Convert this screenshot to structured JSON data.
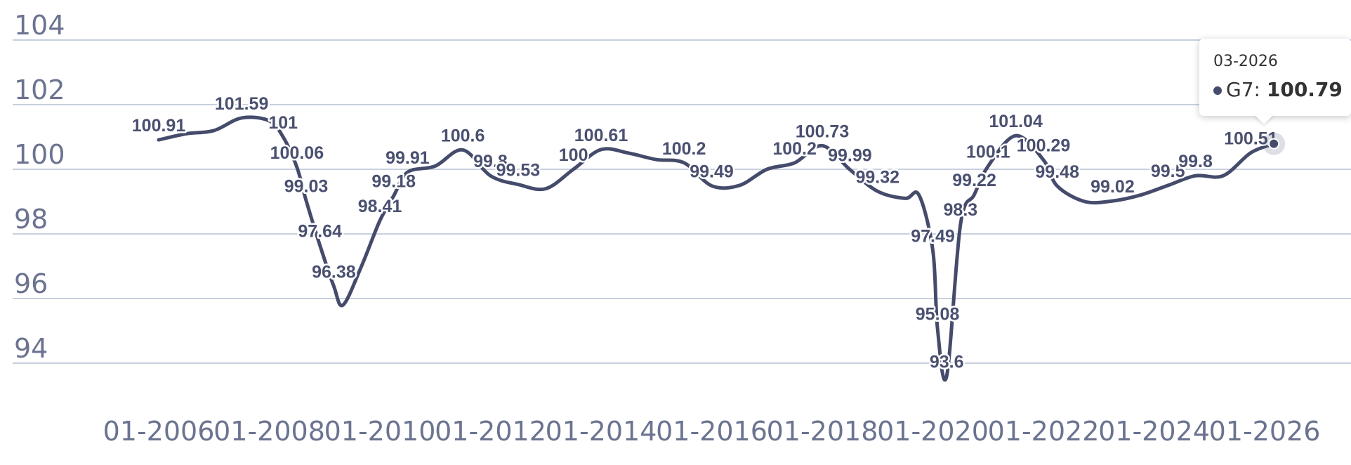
{
  "chart_data": {
    "type": "line",
    "title": "",
    "xlabel": "",
    "ylabel": "",
    "ylim": [
      93.5,
      104
    ],
    "xlim": [
      "2005-01",
      "2026-12"
    ],
    "grid": true,
    "line_color": "#454b6b",
    "grid_color": "#c8d0de",
    "y_ticks": [
      "94",
      "96",
      "98",
      "100",
      "102",
      "104"
    ],
    "x_ticks": [
      "01-2006",
      "01-2008",
      "01-2010",
      "01-2012",
      "01-2014",
      "01-2016",
      "01-2018",
      "01-2020",
      "01-2022",
      "01-2024",
      "01-2026"
    ],
    "series": [
      {
        "name": "G7",
        "points": [
          {
            "x": "2006-01",
            "y": 100.91,
            "label": "100.91"
          },
          {
            "x": "2006-07",
            "y": 101.1
          },
          {
            "x": "2007-01",
            "y": 101.2
          },
          {
            "x": "2007-07",
            "y": 101.59,
            "label": "101.59"
          },
          {
            "x": "2008-01",
            "y": 101.5
          },
          {
            "x": "2008-04",
            "y": 101.0,
            "label": "101"
          },
          {
            "x": "2008-07",
            "y": 100.06,
            "label": "100.06"
          },
          {
            "x": "2008-09",
            "y": 99.03,
            "label": "99.03"
          },
          {
            "x": "2008-12",
            "y": 97.64,
            "label": "97.64"
          },
          {
            "x": "2009-03",
            "y": 96.38,
            "label": "96.38"
          },
          {
            "x": "2009-05",
            "y": 95.8
          },
          {
            "x": "2009-09",
            "y": 97.0
          },
          {
            "x": "2010-01",
            "y": 98.41,
            "label": "98.41"
          },
          {
            "x": "2010-04",
            "y": 99.18,
            "label": "99.18"
          },
          {
            "x": "2010-07",
            "y": 99.91,
            "label": "99.91"
          },
          {
            "x": "2011-01",
            "y": 100.1
          },
          {
            "x": "2011-07",
            "y": 100.6,
            "label": "100.6"
          },
          {
            "x": "2012-01",
            "y": 99.8,
            "label": "99.8"
          },
          {
            "x": "2012-07",
            "y": 99.53,
            "label": "99.53"
          },
          {
            "x": "2013-01",
            "y": 99.4
          },
          {
            "x": "2013-07",
            "y": 100.0,
            "label": "100"
          },
          {
            "x": "2014-01",
            "y": 100.61,
            "label": "100.61"
          },
          {
            "x": "2014-07",
            "y": 100.5
          },
          {
            "x": "2015-01",
            "y": 100.3
          },
          {
            "x": "2015-07",
            "y": 100.2,
            "label": "100.2"
          },
          {
            "x": "2016-01",
            "y": 99.49,
            "label": "99.49"
          },
          {
            "x": "2016-07",
            "y": 99.5
          },
          {
            "x": "2017-01",
            "y": 100.0
          },
          {
            "x": "2017-07",
            "y": 100.2,
            "label": "100.2"
          },
          {
            "x": "2018-01",
            "y": 100.73,
            "label": "100.73"
          },
          {
            "x": "2018-07",
            "y": 99.99,
            "label": "99.99"
          },
          {
            "x": "2019-01",
            "y": 99.32,
            "label": "99.32"
          },
          {
            "x": "2019-07",
            "y": 99.1
          },
          {
            "x": "2019-10",
            "y": 99.2
          },
          {
            "x": "2020-01",
            "y": 97.49,
            "label": "97.49"
          },
          {
            "x": "2020-02",
            "y": 95.08,
            "label": "95.08"
          },
          {
            "x": "2020-04",
            "y": 93.6,
            "label": "93.6"
          },
          {
            "x": "2020-07",
            "y": 98.3,
            "label": "98.3"
          },
          {
            "x": "2020-10",
            "y": 99.22,
            "label": "99.22"
          },
          {
            "x": "2021-01",
            "y": 100.1,
            "label": "100.1"
          },
          {
            "x": "2021-07",
            "y": 101.04,
            "label": "101.04"
          },
          {
            "x": "2022-01",
            "y": 100.29,
            "label": "100.29"
          },
          {
            "x": "2022-04",
            "y": 99.48,
            "label": "99.48"
          },
          {
            "x": "2022-10",
            "y": 99.0
          },
          {
            "x": "2023-04",
            "y": 99.02,
            "label": "99.02"
          },
          {
            "x": "2023-10",
            "y": 99.2
          },
          {
            "x": "2024-04",
            "y": 99.5,
            "label": "99.5"
          },
          {
            "x": "2024-10",
            "y": 99.8,
            "label": "99.8"
          },
          {
            "x": "2025-04",
            "y": 99.8
          },
          {
            "x": "2025-10",
            "y": 100.51,
            "label": "100.51"
          },
          {
            "x": "2026-03",
            "y": 100.79
          }
        ]
      }
    ],
    "tooltip": {
      "date": "03-2026",
      "series_name": "G7",
      "value": "100.79"
    }
  }
}
